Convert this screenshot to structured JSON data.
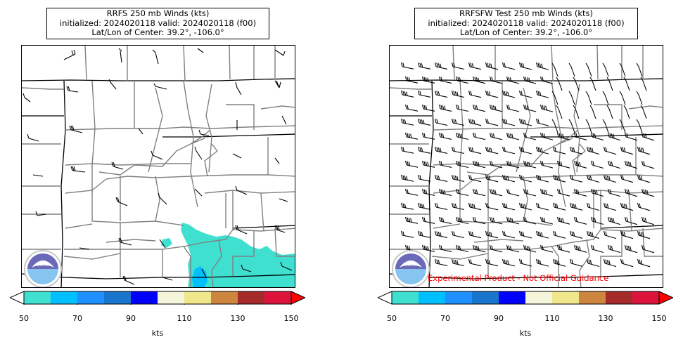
{
  "panels": [
    {
      "title_lines": [
        "RRFS 250 mb Winds (kts)",
        "initialized: 2024020118 valid: 2024020118 (f00)",
        "Lat/Lon of Center: 39.2°, -106.0°"
      ],
      "logo_text": "NOAA",
      "footer_text": "",
      "colorbar_ticks": [
        "50",
        "70",
        "90",
        "110",
        "130",
        "150"
      ],
      "colorbar_unit": "kts"
    },
    {
      "title_lines": [
        "RRFSFW Test 250 mb Winds (kts)",
        "initialized: 2024020118 valid: 2024020118 (f00)",
        "Lat/Lon of Center: 39.2°, -106.0°"
      ],
      "logo_text": "NOAA",
      "footer_text": "Experimental Product - Not Official Guidance",
      "colorbar_ticks": [
        "50",
        "70",
        "90",
        "110",
        "130",
        "150"
      ],
      "colorbar_unit": "kts"
    }
  ],
  "colorbar_colors": [
    "#40e0d0",
    "#00bfff",
    "#1e90ff",
    "#1874cd",
    "#0000ff",
    "#f5f5dc",
    "#f0e68c",
    "#cd853f",
    "#a52a2a",
    "#dc143c"
  ],
  "colorbar_over_color": "#ff0000",
  "colorbar_under_color": "#ffffff",
  "shading_colors": {
    "50-60": "#40e0d0",
    "60-70": "#00bfff"
  }
}
